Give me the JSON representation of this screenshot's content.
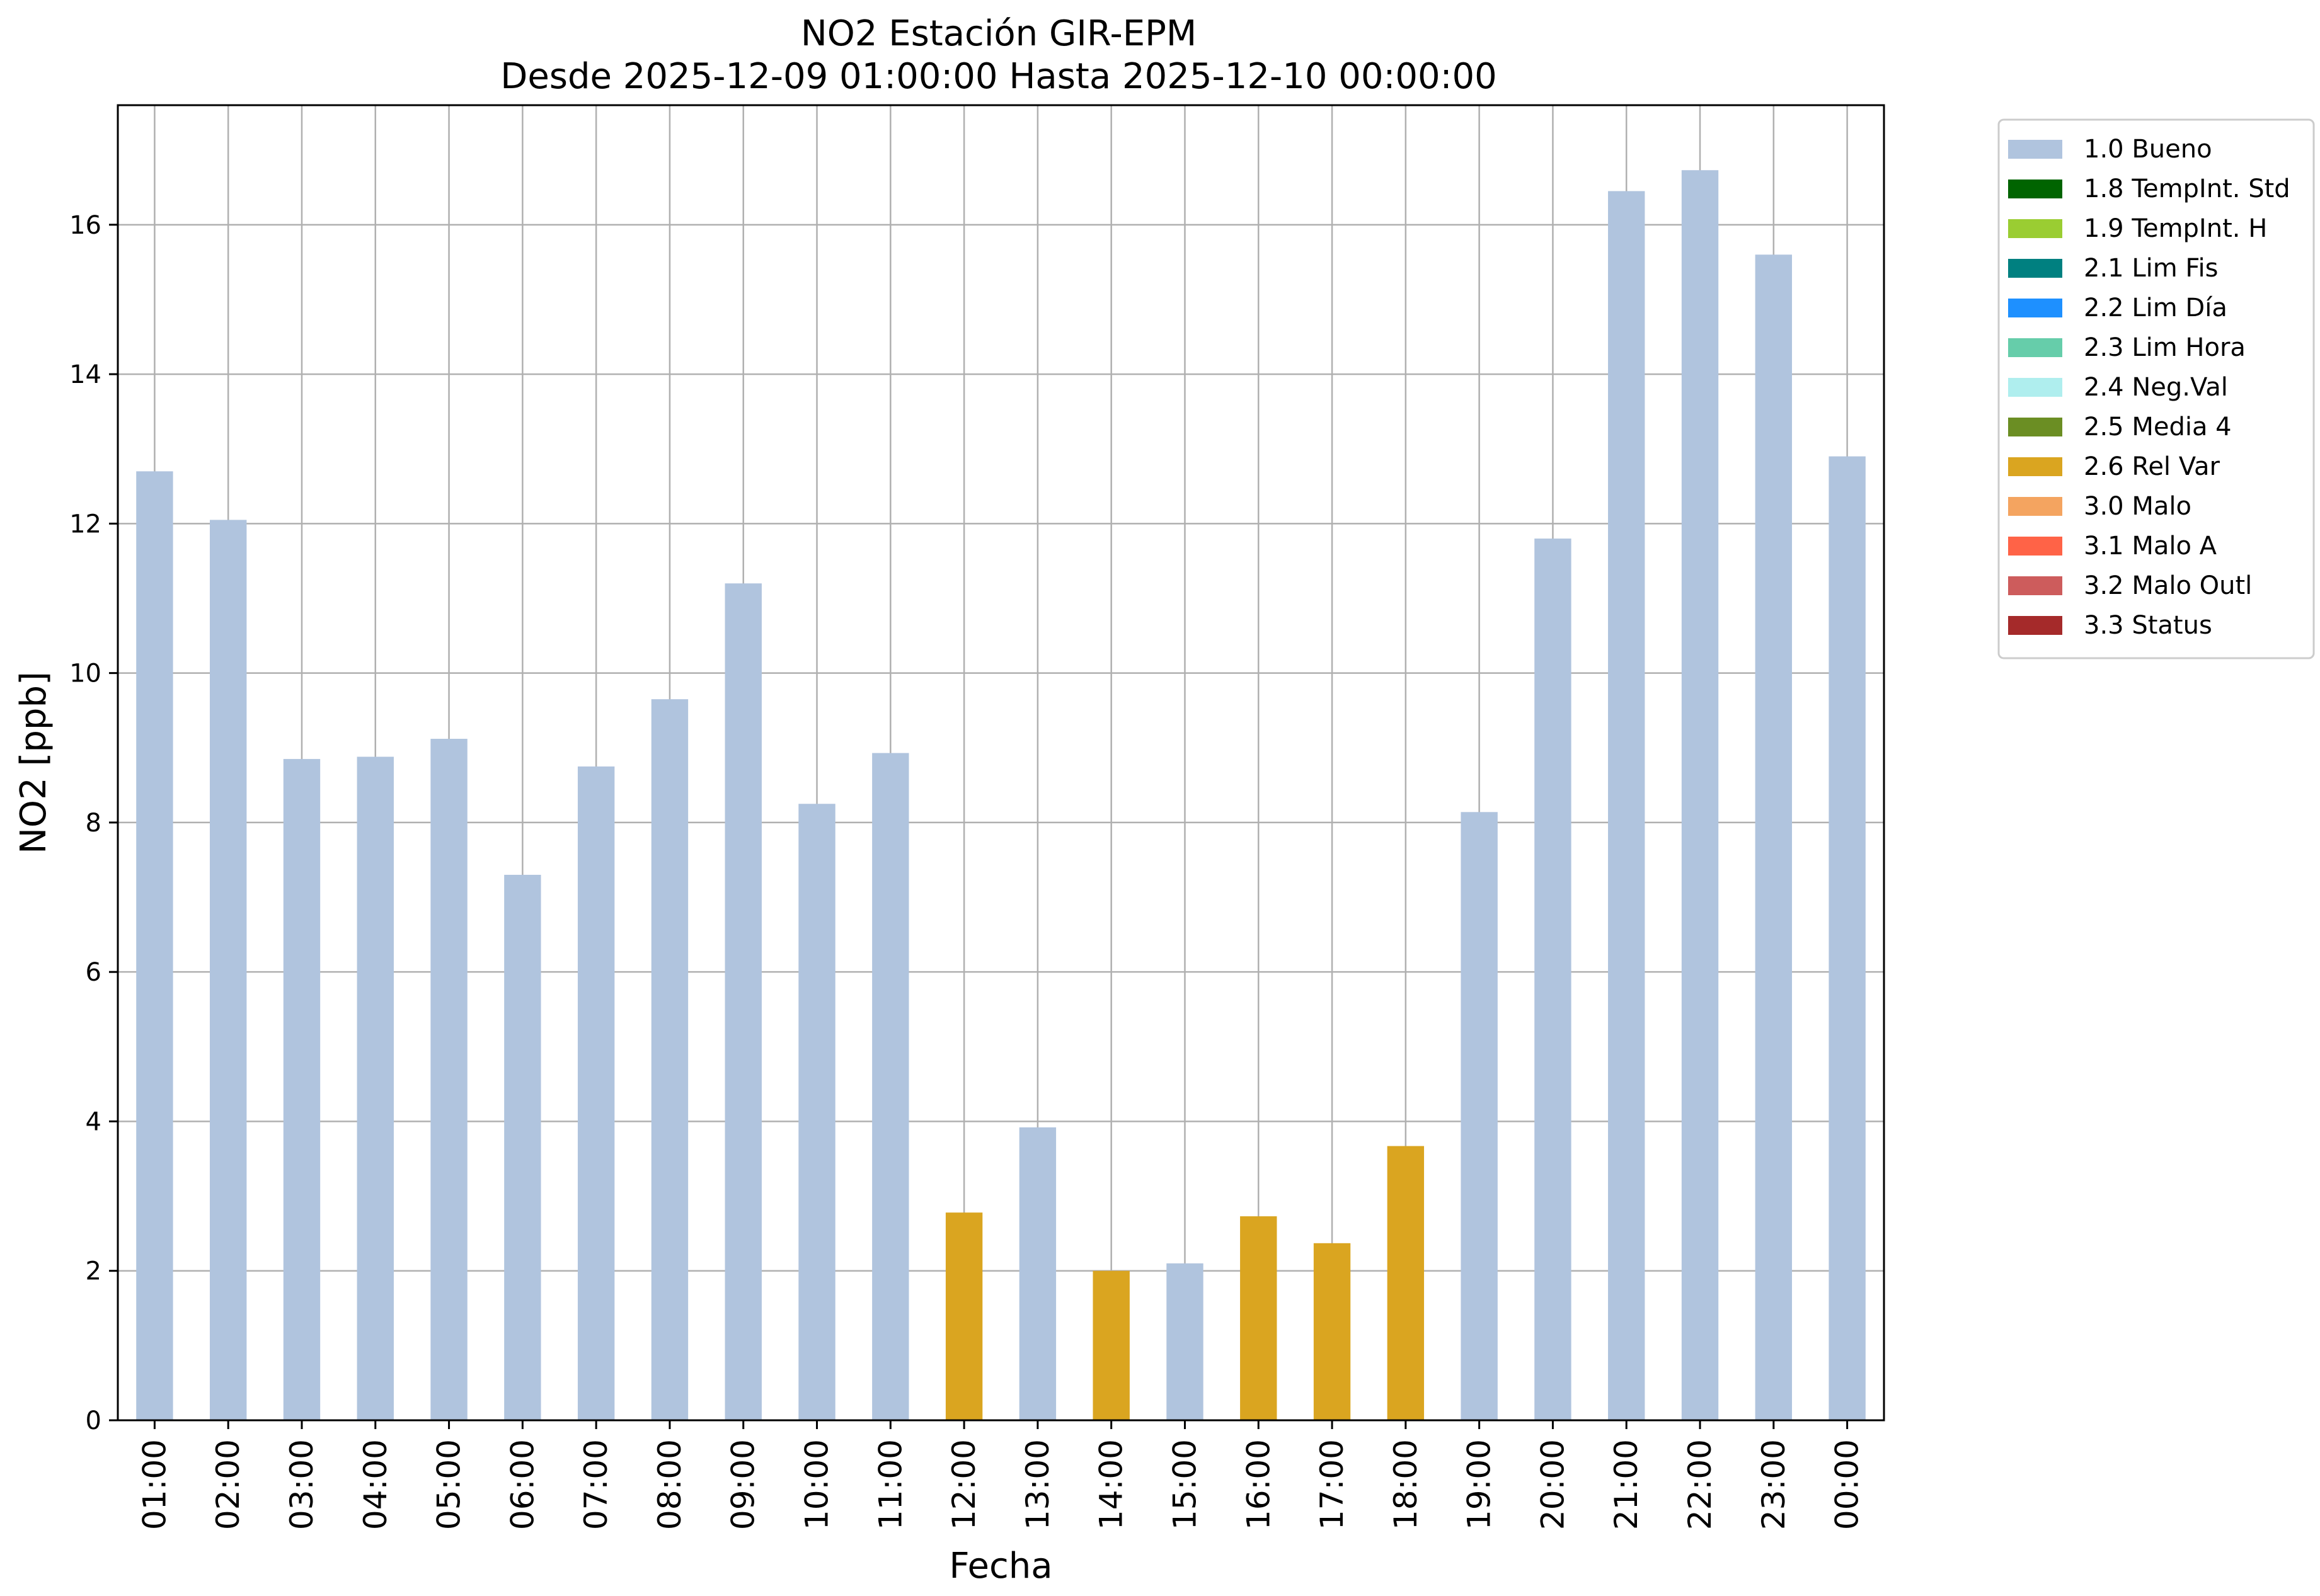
{
  "chart_data": {
    "type": "bar",
    "title": "NO2 Estación GIR-EPM",
    "subtitle": "Desde 2025-12-09 01:00:00 Hasta 2025-12-10 00:00:00",
    "xlabel": "Fecha",
    "ylabel": "NO2 [ppb]",
    "ylim": [
      0,
      17.6
    ],
    "yticks": [
      0,
      2,
      4,
      6,
      8,
      10,
      12,
      14,
      16
    ],
    "grid": true,
    "legend_position": "outside-top-right",
    "categories": [
      "01:00",
      "02:00",
      "03:00",
      "04:00",
      "05:00",
      "06:00",
      "07:00",
      "08:00",
      "09:00",
      "10:00",
      "11:00",
      "12:00",
      "13:00",
      "14:00",
      "15:00",
      "16:00",
      "17:00",
      "18:00",
      "19:00",
      "20:00",
      "21:00",
      "22:00",
      "23:00",
      "00:00"
    ],
    "values": [
      12.7,
      12.05,
      8.85,
      8.88,
      9.12,
      7.3,
      8.75,
      9.65,
      11.2,
      8.25,
      8.93,
      2.78,
      3.92,
      2.0,
      2.1,
      2.73,
      2.37,
      3.67,
      8.14,
      11.8,
      16.45,
      16.73,
      15.6,
      12.9
    ],
    "flags": [
      "1.0 Bueno",
      "1.0 Bueno",
      "1.0 Bueno",
      "1.0 Bueno",
      "1.0 Bueno",
      "1.0 Bueno",
      "1.0 Bueno",
      "1.0 Bueno",
      "1.0 Bueno",
      "1.0 Bueno",
      "1.0 Bueno",
      "2.6 Rel Var",
      "1.0 Bueno",
      "2.6 Rel Var",
      "1.0 Bueno",
      "2.6 Rel Var",
      "2.6 Rel Var",
      "2.6 Rel Var",
      "1.0 Bueno",
      "1.0 Bueno",
      "1.0 Bueno",
      "1.0 Bueno",
      "1.0 Bueno",
      "1.0 Bueno"
    ],
    "legend": [
      {
        "name": "1.0 Bueno",
        "color": "#b0c4de"
      },
      {
        "name": "1.8 TempInt. Std",
        "color": "#006400"
      },
      {
        "name": "1.9 TempInt. H",
        "color": "#9acd32"
      },
      {
        "name": "2.1 Lim Fis",
        "color": "#008080"
      },
      {
        "name": "2.2 Lim Día",
        "color": "#1e90ff"
      },
      {
        "name": "2.3 Lim Hora",
        "color": "#66cdaa"
      },
      {
        "name": "2.4 Neg.Val",
        "color": "#afeeee"
      },
      {
        "name": "2.5 Media 4",
        "color": "#6b8e23"
      },
      {
        "name": "2.6 Rel Var",
        "color": "#daa520"
      },
      {
        "name": "3.0 Malo",
        "color": "#f4a460"
      },
      {
        "name": "3.1 Malo A",
        "color": "#ff6347"
      },
      {
        "name": "3.2 Malo Outl",
        "color": "#cd5c5c"
      },
      {
        "name": "3.3 Status",
        "color": "#a52a2a"
      }
    ]
  }
}
